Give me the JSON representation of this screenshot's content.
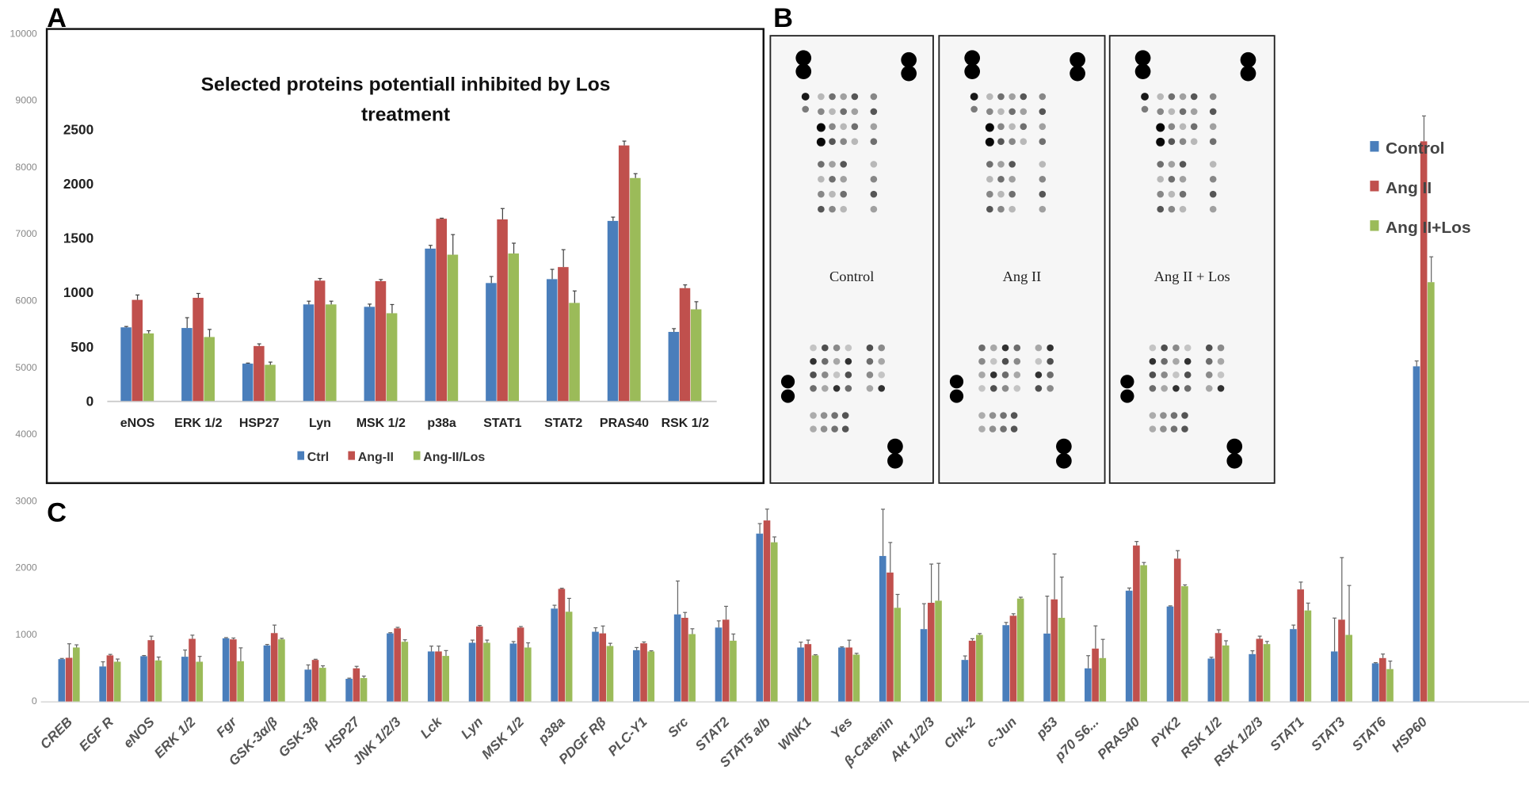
{
  "panel_labels": {
    "a": "A",
    "b": "B",
    "c": "C"
  },
  "colors": {
    "control": "#4a7ebb",
    "angii": "#c0504d",
    "los": "#9bbb59"
  },
  "blots": {
    "labels": [
      "Control",
      "Ang II",
      "Ang II + Los"
    ]
  },
  "right_legend": [
    "Control",
    "Ang II",
    "Ang II+Los"
  ],
  "chart_data": [
    {
      "type": "bar",
      "title": "Selected proteins potentiall inhibited by Los",
      "title_line2": "treatment",
      "ylim": [
        0,
        2500
      ],
      "yticks": [
        "0",
        "500",
        "1000",
        "1500",
        "2000",
        "2500"
      ],
      "legend": [
        "Ctrl",
        "Ang-II",
        "Ang-II/Los"
      ],
      "legend_position": "bottom",
      "categories": [
        "eNOS",
        "ERK 1/2",
        "HSP27",
        "Lyn",
        "MSK 1/2",
        "p38a",
        "STAT1",
        "STAT2",
        "PRAS40",
        "RSK 1/2"
      ],
      "series": [
        {
          "name": "Ctrl",
          "values": [
            678,
            672,
            344,
            889,
            867,
            1403,
            1086,
            1122,
            1658,
            636
          ],
          "errors": [
            8,
            95,
            5,
            30,
            25,
            30,
            60,
            90,
            35,
            30
          ]
        },
        {
          "name": "Ang-II",
          "values": [
            931,
            950,
            506,
            1108,
            1103,
            1678,
            1672,
            1233,
            2353,
            1039
          ],
          "errors": [
            45,
            40,
            20,
            20,
            15,
            5,
            100,
            160,
            40,
            30
          ]
        },
        {
          "name": "Ang-II/Los",
          "values": [
            622,
            589,
            333,
            889,
            808,
            1347,
            1358,
            903,
            2053,
            844
          ],
          "errors": [
            25,
            70,
            25,
            30,
            80,
            185,
            95,
            110,
            40,
            70
          ]
        }
      ]
    },
    {
      "type": "bar",
      "ylim": [
        0,
        10000
      ],
      "yticks": [
        "0",
        "1000",
        "2000",
        "3000",
        "4000",
        "5000",
        "6000",
        "7000",
        "8000",
        "9000",
        "10000"
      ],
      "legend": [
        "Control",
        "Ang II",
        "Ang II+Los"
      ],
      "legend_position": "right",
      "categories": [
        "CREB",
        "EGF R",
        "eNOS",
        "ERK 1/2",
        "Fgr",
        "GSK-3α/β",
        "GSK-3β",
        "HSP27",
        "JNK 1/2/3",
        "Lck",
        "Lyn",
        "MSK 1/2",
        "p38a",
        "PDGF Rβ",
        "PLC-Y1",
        "Src",
        "STAT2",
        "STAT5 a/b",
        "WNK1",
        "Yes",
        "β-Catenin",
        "Akt 1/2/3",
        "Chk-2",
        "c-Jun",
        "p53",
        "p70 S6...",
        "PRAS40",
        "PYK2",
        "RSK 1/2",
        "RSK 1/2/3",
        "STAT1",
        "STAT3",
        "STAT6",
        "HSP60"
      ],
      "series": [
        {
          "name": "Control",
          "values": [
            634,
            524,
            678,
            670,
            946,
            839,
            477,
            339,
            1020,
            749,
            879,
            867,
            1391,
            1044,
            768,
            1304,
            1107,
            2514,
            808,
            808,
            2179,
            1084,
            622,
            1143,
            1017,
            496,
            1659,
            1422,
            642,
            709,
            1084,
            749,
            571,
            5020
          ],
          "errors": [
            10,
            70,
            10,
            100,
            10,
            15,
            70,
            10,
            10,
            80,
            40,
            30,
            50,
            60,
            40,
            500,
            100,
            150,
            80,
            10,
            700,
            380,
            60,
            40,
            560,
            190,
            40,
            10,
            20,
            50,
            60,
            500,
            10,
            80
          ]
        },
        {
          "name": "Ang II",
          "values": [
            654,
            690,
            918,
            938,
            930,
            1024,
            622,
            496,
            1095,
            749,
            1123,
            1107,
            1686,
            1020,
            871,
            1253,
            1225,
            2711,
            859,
            808,
            1931,
            1478,
            910,
            1284,
            1529,
            792,
            2336,
            2139,
            1024,
            938,
            1678,
            1225,
            650,
            8390
          ],
          "errors": [
            210,
            15,
            60,
            55,
            20,
            120,
            10,
            30,
            15,
            80,
            15,
            15,
            10,
            110,
            20,
            80,
            200,
            170,
            60,
            110,
            450,
            580,
            30,
            30,
            680,
            340,
            60,
            120,
            50,
            40,
            110,
            930,
            60,
            380
          ]
        },
        {
          "name": "Ang II+Los",
          "values": [
            808,
            595,
            615,
            595,
            603,
            930,
            504,
            350,
            894,
            682,
            879,
            808,
            1344,
            831,
            749,
            1009,
            910,
            2384,
            690,
            701,
            1403,
            1509,
            997,
            1541,
            1253,
            650,
            2041,
            1726,
            839,
            859,
            1363,
            997,
            485,
            6280
          ],
          "errors": [
            40,
            40,
            50,
            80,
            200,
            15,
            30,
            30,
            30,
            80,
            40,
            70,
            200,
            40,
            10,
            80,
            100,
            80,
            10,
            20,
            200,
            560,
            20,
            20,
            610,
            280,
            40,
            20,
            70,
            40,
            110,
            740,
            120,
            380
          ]
        }
      ]
    }
  ]
}
